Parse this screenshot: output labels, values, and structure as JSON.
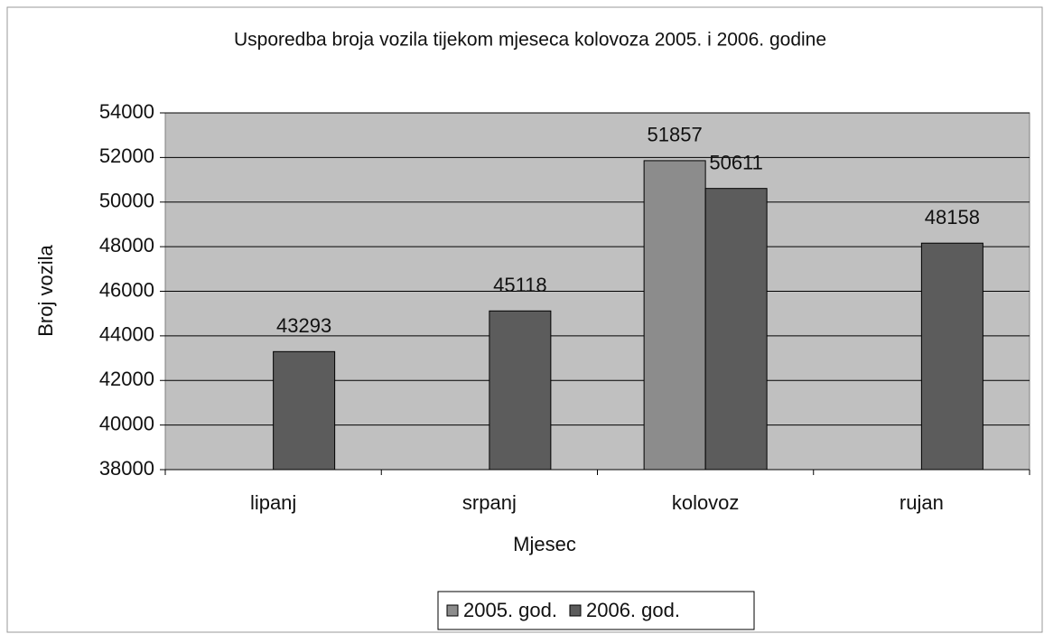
{
  "chart_data": {
    "type": "bar",
    "title": "Usporedba broja vozila tijekom mjeseca kolovoza 2005. i 2006. godine",
    "x_label": "Mjesec",
    "y_label": "Broj vozila",
    "categories": [
      "lipanj",
      "srpanj",
      "kolovoz",
      "rujan"
    ],
    "series": [
      {
        "name": "2005. god.",
        "color": "#8c8c8c",
        "values": [
          null,
          null,
          51857,
          null
        ]
      },
      {
        "name": "2006. god.",
        "color": "#5c5c5c",
        "values": [
          43293,
          45118,
          50611,
          48158
        ]
      }
    ],
    "ylim": [
      38000,
      54000
    ],
    "yticks": [
      38000,
      40000,
      42000,
      44000,
      46000,
      48000,
      50000,
      52000,
      54000
    ],
    "grid": true,
    "legend": "bottom"
  }
}
